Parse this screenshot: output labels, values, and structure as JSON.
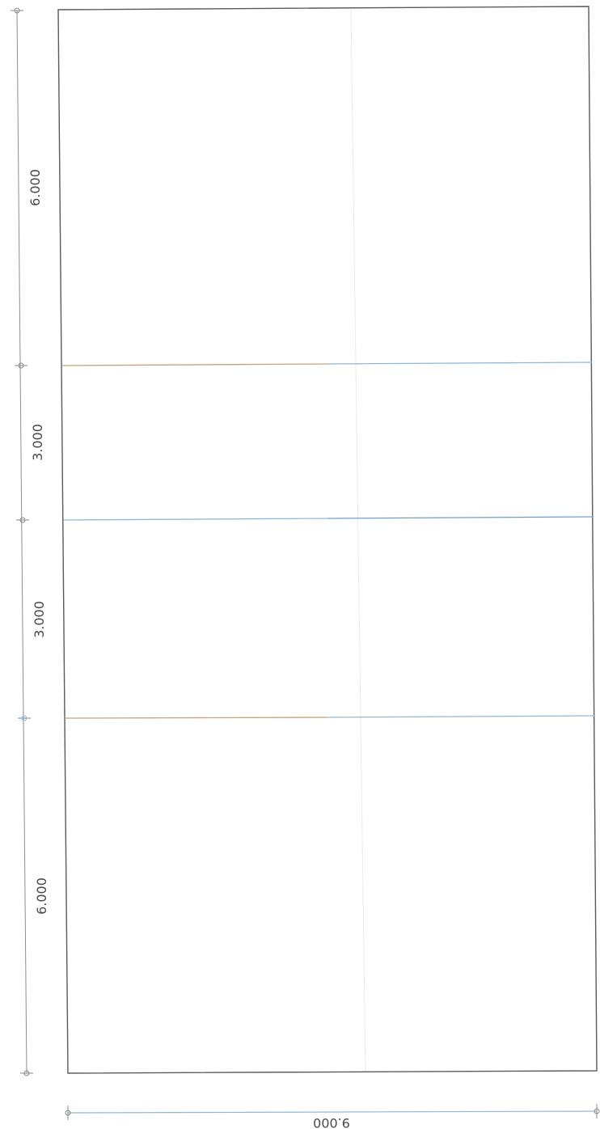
{
  "drawing": {
    "vertical_dimensions": [
      "6.000",
      "3.000",
      "3.000",
      "6.000"
    ],
    "horizontal_dimension": "9.000"
  },
  "colors": {
    "outline": "#5a5a5a",
    "dimension_line": "#8e8e8e",
    "divider_left": "#c8a27a",
    "divider_right": "#8fb9d8",
    "centerline": "#e8e8e8"
  }
}
